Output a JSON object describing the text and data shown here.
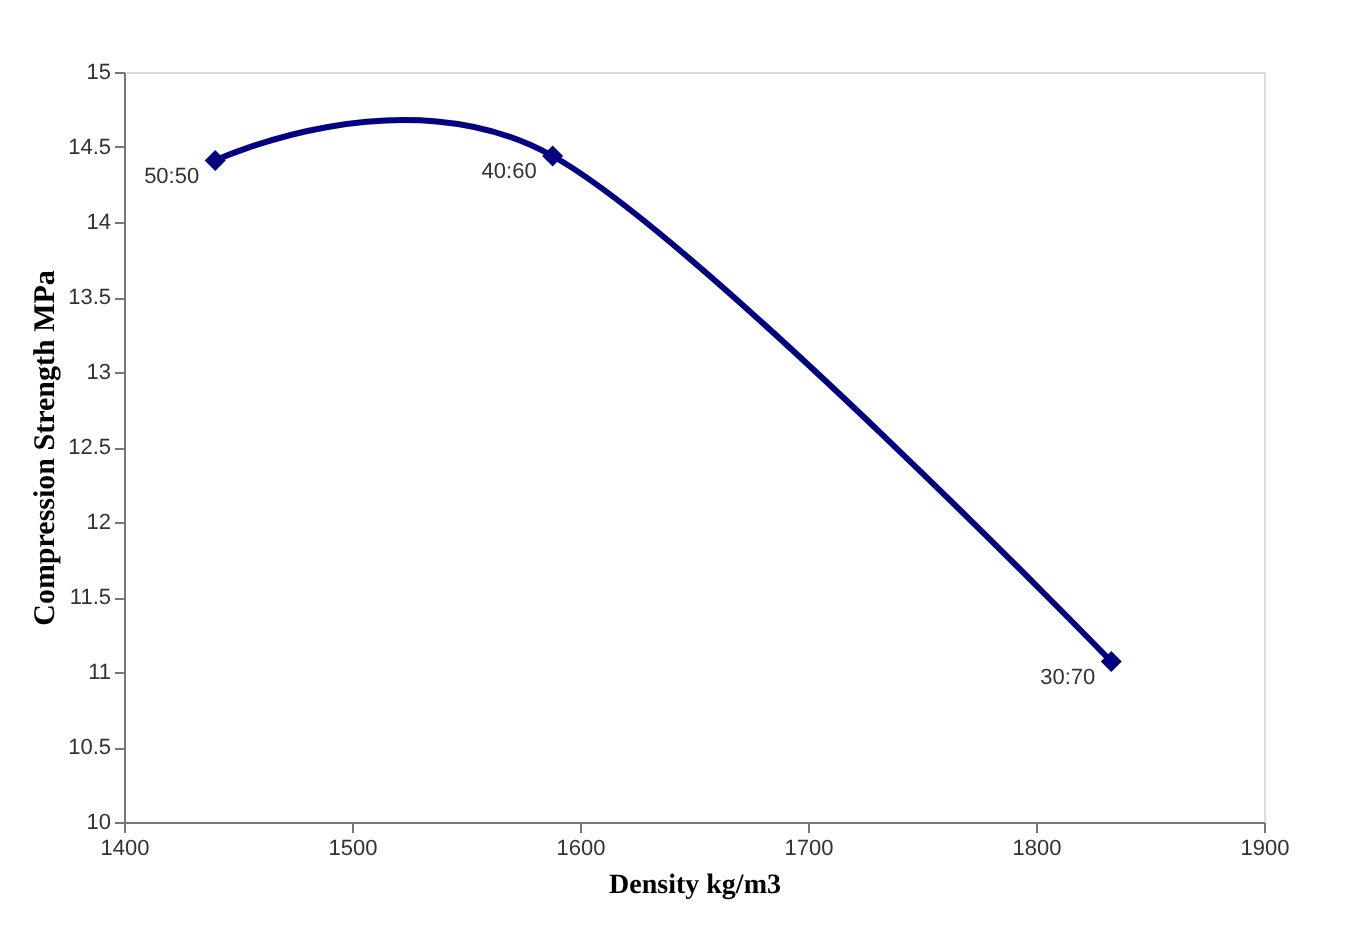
{
  "chart_data": {
    "type": "line",
    "xlabel": "Density kg/m3",
    "ylabel": "Compression  Strength MPa",
    "x": [
      1440,
      1588,
      1833
    ],
    "series": [
      {
        "color": "#000080",
        "values": [
          14.41,
          14.44,
          11.07
        ]
      }
    ],
    "xlim": [
      1400,
      1900
    ],
    "xticks": [
      1400,
      1500,
      1600,
      1700,
      1800,
      1900
    ],
    "ylim": [
      10,
      15
    ],
    "yticks": [
      10,
      10.5,
      11,
      11.5,
      12,
      12.5,
      13,
      13.5,
      14,
      14.5,
      15
    ],
    "marker": "diamond",
    "line_style": "solid",
    "grid": false,
    "annotations": [
      {
        "text": "50:50",
        "x": 1440,
        "y": 14.41
      },
      {
        "text": "40:60",
        "x": 1588,
        "y": 14.44
      },
      {
        "text": "30:70",
        "x": 1833,
        "y": 11.07
      }
    ]
  }
}
